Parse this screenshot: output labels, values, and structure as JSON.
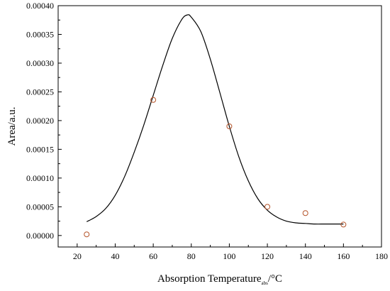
{
  "chart_data": {
    "type": "scatter",
    "title": "",
    "xlabel": "Absorption Temperature",
    "xlabel_subscript": "abs",
    "xlabel_unit": "/°C",
    "ylabel": "Area/a.u.",
    "xlim": [
      10,
      180
    ],
    "ylim": [
      -2e-05,
      0.0004
    ],
    "x_ticks": [
      20,
      40,
      60,
      80,
      100,
      120,
      140,
      160,
      180
    ],
    "y_ticks": [
      0.0,
      5e-05,
      0.0001,
      0.00015,
      0.0002,
      0.00025,
      0.0003,
      0.00035,
      0.0004
    ],
    "x_tick_labels": [
      "20",
      "40",
      "60",
      "80",
      "100",
      "120",
      "140",
      "160",
      "180"
    ],
    "y_tick_labels": [
      "0.00000",
      "0.00005",
      "0.00010",
      "0.00015",
      "0.00020",
      "0.00025",
      "0.00030",
      "0.00035",
      "0.00040"
    ],
    "grid": false,
    "legend": "none",
    "series": [
      {
        "kind": "points",
        "marker": "open-circle",
        "color": "#b5542a",
        "x": [
          25,
          60,
          100,
          120,
          140,
          160
        ],
        "y": [
          2e-06,
          0.000236,
          0.00019,
          5e-05,
          3.9e-05,
          1.9e-05
        ]
      },
      {
        "kind": "fit-line",
        "color": "#000000",
        "x": [
          25,
          30,
          35,
          40,
          45,
          50,
          55,
          60,
          65,
          70,
          75,
          78,
          80,
          85,
          90,
          95,
          100,
          105,
          110,
          115,
          120,
          125,
          130,
          135,
          140,
          145,
          150,
          155,
          160
        ],
        "y": [
          2.4e-05,
          3.3e-05,
          4.7e-05,
          7e-05,
          0.000103,
          0.000145,
          0.000192,
          0.000244,
          0.000296,
          0.000343,
          0.000376,
          0.000384,
          0.00038,
          0.000355,
          0.000307,
          0.000249,
          0.00019,
          0.000137,
          9.5e-05,
          6.4e-05,
          4.4e-05,
          3.2e-05,
          2.5e-05,
          2.2e-05,
          2.1e-05,
          2e-05,
          2e-05,
          2e-05,
          2e-05
        ]
      }
    ]
  }
}
